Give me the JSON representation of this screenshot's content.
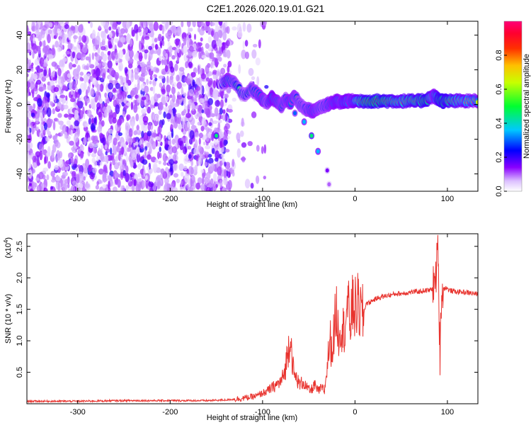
{
  "title": "C2E1.2026.020.19.01.G21",
  "chart_data": [
    {
      "type": "heatmap",
      "name": "spectrogram",
      "xlabel": "Height of straight line (km)",
      "ylabel": "Frequency (Hz)",
      "xlim": [
        -355,
        133
      ],
      "ylim": [
        -50,
        48
      ],
      "xticks": [
        -300,
        -200,
        -100,
        0,
        100
      ],
      "xtick_labels": [
        "-300",
        "-200",
        "-100",
        "0",
        "100"
      ],
      "yticks": [
        -40,
        -20,
        0,
        20,
        40
      ],
      "ytick_labels": [
        "-40",
        "-20",
        "0",
        "20",
        "40"
      ],
      "colorbar": {
        "label": "Normalized spectral amplitude",
        "range": [
          0,
          1
        ],
        "ticks": [
          0.0,
          0.2,
          0.4,
          0.6,
          0.8
        ],
        "tick_labels": [
          "0.0",
          "0.2",
          "0.4",
          "0.6",
          "0.8"
        ],
        "colors": [
          "#ffffff",
          "#8a00ff",
          "#0000ff",
          "#00c8ff",
          "#00ff30",
          "#f0ff00",
          "#ff8000",
          "#ff0000",
          "#ff0060"
        ]
      },
      "noise_region": {
        "x": [
          -355,
          -135
        ],
        "y": [
          -50,
          48
        ],
        "amplitude": [
          0.05,
          0.35
        ]
      },
      "signal_track": [
        {
          "x": -145,
          "y": 12,
          "a": 0.3
        },
        {
          "x": -138,
          "y": 14,
          "a": 0.6
        },
        {
          "x": -130,
          "y": 12,
          "a": 0.5
        },
        {
          "x": -120,
          "y": 5,
          "a": 0.45
        },
        {
          "x": -112,
          "y": 9,
          "a": 0.5
        },
        {
          "x": -105,
          "y": 6,
          "a": 0.55
        },
        {
          "x": -100,
          "y": 3,
          "a": 0.6
        },
        {
          "x": -95,
          "y": 1,
          "a": 0.5
        },
        {
          "x": -90,
          "y": 4,
          "a": 0.65
        },
        {
          "x": -85,
          "y": 2,
          "a": 0.6
        },
        {
          "x": -80,
          "y": -1,
          "a": 0.55
        },
        {
          "x": -75,
          "y": 3,
          "a": 0.55
        },
        {
          "x": -70,
          "y": 1,
          "a": 0.6
        },
        {
          "x": -65,
          "y": 5,
          "a": 0.55
        },
        {
          "x": -60,
          "y": 0,
          "a": 0.5
        },
        {
          "x": -55,
          "y": -2,
          "a": 0.5
        },
        {
          "x": -50,
          "y": -3,
          "a": 0.55
        },
        {
          "x": -45,
          "y": -4,
          "a": 0.6
        },
        {
          "x": -40,
          "y": -2,
          "a": 0.55
        },
        {
          "x": -35,
          "y": -1,
          "a": 0.5
        },
        {
          "x": -30,
          "y": 0,
          "a": 0.55
        },
        {
          "x": -25,
          "y": 1,
          "a": 0.6
        },
        {
          "x": -20,
          "y": 2,
          "a": 0.65
        },
        {
          "x": -15,
          "y": 1,
          "a": 0.6
        },
        {
          "x": -10,
          "y": 2,
          "a": 0.7
        },
        {
          "x": -5,
          "y": 2,
          "a": 0.6
        },
        {
          "x": 0,
          "y": 2,
          "a": 0.7
        },
        {
          "x": 10,
          "y": 2,
          "a": 0.85
        },
        {
          "x": 20,
          "y": 2,
          "a": 0.9
        },
        {
          "x": 30,
          "y": 2,
          "a": 0.88
        },
        {
          "x": 40,
          "y": 2,
          "a": 0.8
        },
        {
          "x": 50,
          "y": 2,
          "a": 0.75
        },
        {
          "x": 60,
          "y": 2,
          "a": 0.8
        },
        {
          "x": 70,
          "y": 2,
          "a": 0.82
        },
        {
          "x": 78,
          "y": 3,
          "a": 0.9
        },
        {
          "x": 85,
          "y": 5,
          "a": 0.6
        },
        {
          "x": 90,
          "y": 3,
          "a": 0.85
        },
        {
          "x": 95,
          "y": 2,
          "a": 0.9
        },
        {
          "x": 100,
          "y": 2,
          "a": 0.85
        },
        {
          "x": 110,
          "y": 2,
          "a": 0.75
        },
        {
          "x": 120,
          "y": 2,
          "a": 0.7
        },
        {
          "x": 133,
          "y": 2,
          "a": 0.65
        }
      ],
      "secondary_track": [
        {
          "x": -65,
          "y": -5,
          "a": 0.3
        },
        {
          "x": -55,
          "y": -10,
          "a": 0.35
        },
        {
          "x": -47,
          "y": -18,
          "a": 0.45
        },
        {
          "x": -40,
          "y": -27,
          "a": 0.35
        },
        {
          "x": -30,
          "y": -38,
          "a": 0.15
        },
        {
          "x": -28,
          "y": -46,
          "a": 0.1
        },
        {
          "x": -150,
          "y": -18,
          "a": 0.45
        }
      ]
    },
    {
      "type": "line",
      "name": "snr",
      "xlabel": "Height of straight line (km)",
      "ylabel": "SNR (10 * v/v)",
      "scale_label": "(x10",
      "scale_exponent": "4",
      "scale_close": ")",
      "xlim": [
        -355,
        133
      ],
      "ylim": [
        0.0,
        2.7
      ],
      "xticks": [
        -300,
        -200,
        -100,
        0,
        100
      ],
      "xtick_labels": [
        "-300",
        "-200",
        "-100",
        "0",
        "100"
      ],
      "yticks": [
        0.5,
        1.0,
        1.5,
        2.0,
        2.5
      ],
      "ytick_labels": [
        "0.5",
        "1.0",
        "1.5",
        "2.0",
        "2.5"
      ],
      "line_color": "#e8332e",
      "series": [
        {
          "name": "SNR",
          "x": [
            -355,
            -300,
            -250,
            -200,
            -160,
            -140,
            -125,
            -115,
            -105,
            -100,
            -95,
            -90,
            -85,
            -80,
            -76,
            -73,
            -70,
            -68,
            -66,
            -63,
            -60,
            -56,
            -52,
            -48,
            -44,
            -40,
            -36,
            -33,
            -30,
            -27,
            -25,
            -22,
            -20,
            -18,
            -15,
            -12,
            -10,
            -8,
            -5,
            -2,
            0,
            3,
            6,
            9,
            12,
            15,
            20,
            25,
            30,
            35,
            40,
            45,
            50,
            55,
            60,
            65,
            70,
            75,
            80,
            84,
            87,
            89,
            90,
            91,
            92,
            93,
            95,
            98,
            102,
            110,
            120,
            133
          ],
          "y": [
            0.04,
            0.04,
            0.05,
            0.05,
            0.05,
            0.06,
            0.08,
            0.1,
            0.13,
            0.17,
            0.2,
            0.25,
            0.3,
            0.35,
            0.5,
            0.8,
            1.1,
            0.75,
            0.45,
            0.4,
            0.3,
            0.35,
            0.25,
            0.2,
            0.3,
            0.2,
            0.25,
            0.2,
            0.6,
            1.05,
            0.8,
            1.25,
            1.5,
            1.1,
            1.3,
            1.15,
            1.45,
            1.55,
            1.3,
            1.6,
            1.5,
            1.55,
            1.45,
            1.4,
            1.6,
            1.6,
            1.65,
            1.68,
            1.7,
            1.72,
            1.73,
            1.75,
            1.75,
            1.76,
            1.77,
            1.78,
            1.78,
            1.8,
            1.8,
            1.83,
            1.95,
            2.3,
            2.5,
            1.4,
            0.8,
            1.6,
            1.8,
            1.85,
            1.8,
            1.78,
            1.77,
            1.74
          ]
        }
      ]
    }
  ]
}
